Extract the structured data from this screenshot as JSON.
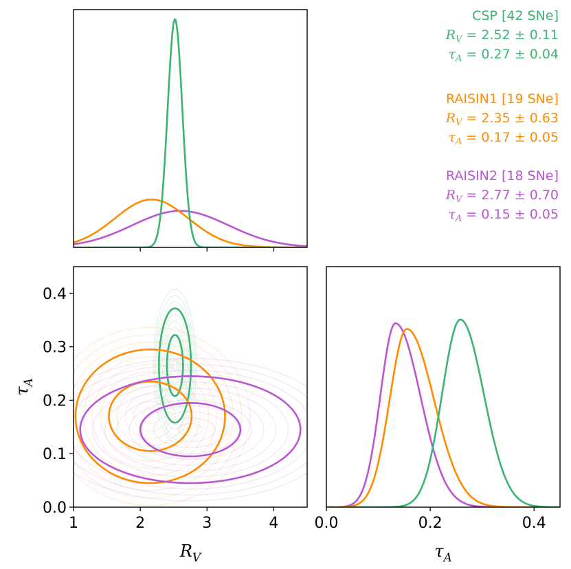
{
  "chart_data": [
    {
      "type": "line",
      "panel": "marginal R_V",
      "xlim": [
        1,
        4.5
      ],
      "series": [
        {
          "name": "CSP",
          "color": "#3cb371",
          "mean": 2.52,
          "sigma": 0.11,
          "peak": 1.0
        },
        {
          "name": "RAISIN1",
          "color": "#ff8c00",
          "mean": 2.17,
          "sigma": 0.55,
          "peak": 0.21
        },
        {
          "name": "RAISIN2",
          "color": "#ba55d3",
          "mean": 2.6,
          "sigma": 0.72,
          "peak": 0.16
        }
      ]
    },
    {
      "type": "contour",
      "panel": "joint R_V vs tau_A",
      "xlim": [
        1,
        4.5
      ],
      "ylim": [
        0,
        0.45
      ],
      "xlabel": "R_V",
      "ylabel": "tau_A",
      "xticks": [
        "1",
        "2",
        "3",
        "4"
      ],
      "yticks": [
        "0.0",
        "0.1",
        "0.2",
        "0.3",
        "0.4"
      ],
      "series": [
        {
          "name": "CSP",
          "color": "#3cb371",
          "center": [
            2.52,
            0.265
          ],
          "contours": [
            {
              "level": "1sigma",
              "rx": 0.12,
              "ry": 0.057
            },
            {
              "level": "2sigma",
              "rx": 0.24,
              "ry": 0.107
            }
          ]
        },
        {
          "name": "RAISIN1",
          "color": "#ff8c00",
          "center": [
            2.15,
            0.17
          ],
          "contours": [
            {
              "level": "1sigma",
              "rx": 0.62,
              "ry": 0.065
            },
            {
              "level": "2sigma",
              "rx": 1.12,
              "ry": 0.125
            }
          ]
        },
        {
          "name": "RAISIN2",
          "color": "#ba55d3",
          "center": [
            2.75,
            0.145
          ],
          "contours": [
            {
              "level": "1sigma",
              "rx": 0.75,
              "ry": 0.05
            },
            {
              "level": "2sigma",
              "rx": 1.65,
              "ry": 0.1
            }
          ]
        }
      ]
    },
    {
      "type": "line",
      "panel": "marginal tau_A",
      "xlim": [
        0,
        0.45
      ],
      "xlabel": "tau_A",
      "xticks": [
        "0.0",
        "0.2",
        "0.4"
      ],
      "series": [
        {
          "name": "CSP",
          "color": "#3cb371",
          "mode": 0.258,
          "sigmaLeft": 0.035,
          "sigmaRight": 0.045,
          "peak": 1.0
        },
        {
          "name": "RAISIN1",
          "color": "#ff8c00",
          "mode": 0.155,
          "sigmaLeft": 0.033,
          "sigmaRight": 0.052,
          "peak": 0.95
        },
        {
          "name": "RAISIN2",
          "color": "#ba55d3",
          "mode": 0.133,
          "sigmaLeft": 0.029,
          "sigmaRight": 0.048,
          "peak": 0.98
        }
      ]
    }
  ],
  "legend": [
    {
      "name": "CSP",
      "color": "#3cb371",
      "header": "CSP [42 SNe]",
      "rv_prefix": "R",
      "rv_sub": "V",
      "rv_value": " = 2.52 ± 0.11",
      "tau_prefix": "τ",
      "tau_sub": "A",
      "tau_value": " = 0.27 ± 0.04"
    },
    {
      "name": "RAISIN1",
      "color": "#ff8c00",
      "header": "RAISIN1 [19 SNe]",
      "rv_prefix": "R",
      "rv_sub": "V",
      "rv_value": " = 2.35 ± 0.63",
      "tau_prefix": "τ",
      "tau_sub": "A",
      "tau_value": " = 0.17 ± 0.05"
    },
    {
      "name": "RAISIN2",
      "color": "#ba55d3",
      "header": "RAISIN2 [18 SNe]",
      "rv_prefix": "R",
      "rv_sub": "V",
      "rv_value": " = 2.77 ± 0.70",
      "tau_prefix": "τ",
      "tau_sub": "A",
      "tau_value": " = 0.15 ± 0.05"
    }
  ],
  "axes": {
    "x_label_main": "R",
    "x_label_main_sub": "V",
    "y_label_main": "τ",
    "y_label_main_sub": "A",
    "x_label_right": "τ",
    "x_label_right_sub": "A"
  }
}
